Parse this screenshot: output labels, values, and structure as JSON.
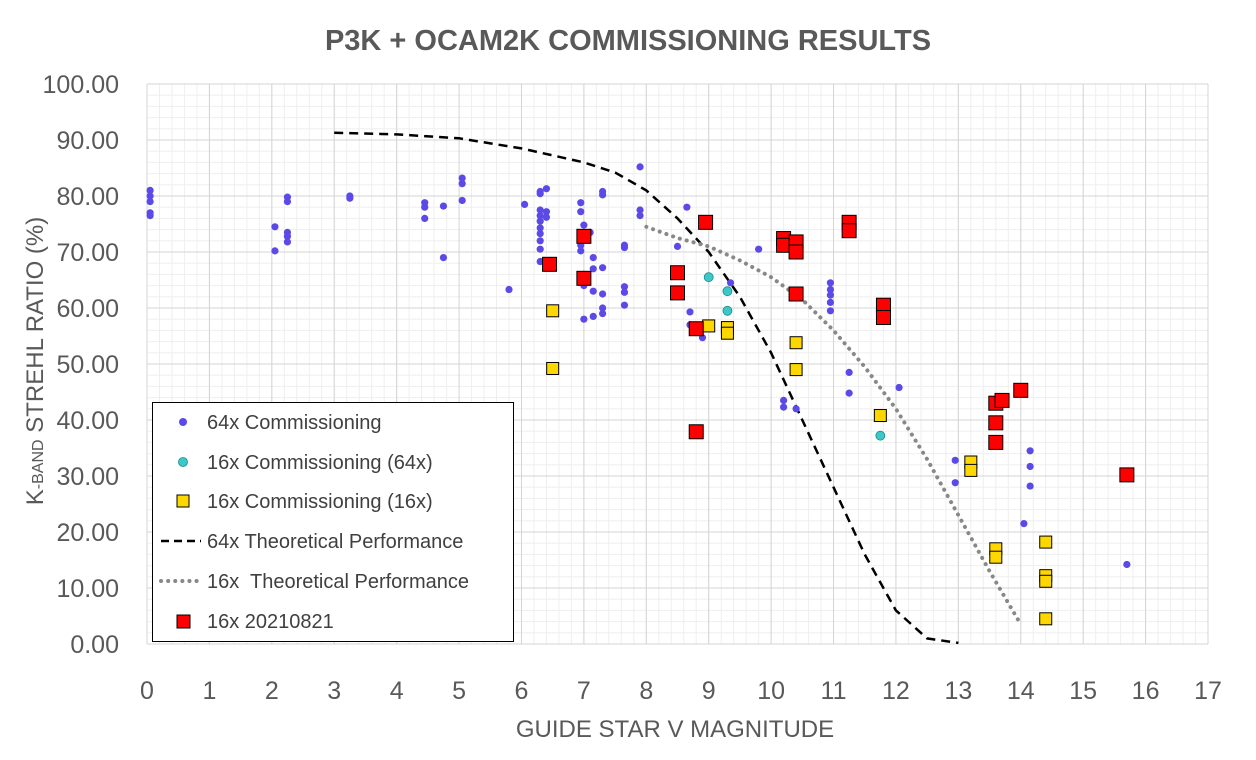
{
  "chart_data": {
    "type": "scatter",
    "title": "P3K + OCAM2K COMMISSIONING RESULTS",
    "xlabel": "GUIDE STAR V MAGNITUDE",
    "ylabel_prefix": "K",
    "ylabel_small": "-BAND",
    "ylabel_rest": " STREHL RATIO (%)",
    "xlim": [
      0,
      17
    ],
    "ylim": [
      0,
      100
    ],
    "x_ticks": [
      "0",
      "1",
      "2",
      "3",
      "4",
      "5",
      "6",
      "7",
      "8",
      "9",
      "10",
      "11",
      "12",
      "13",
      "14",
      "15",
      "16",
      "17"
    ],
    "y_ticks": [
      "0.00",
      "10.00",
      "20.00",
      "30.00",
      "40.00",
      "50.00",
      "60.00",
      "70.00",
      "80.00",
      "90.00",
      "100.00"
    ],
    "grid": true,
    "legend_position": "bottom-left",
    "series": [
      {
        "name": "64x Commissioning",
        "marker": "circle",
        "color": "#5b4ae8",
        "points": [
          [
            0.05,
            81.0
          ],
          [
            0.05,
            80.0
          ],
          [
            0.05,
            79.0
          ],
          [
            0.05,
            77.0
          ],
          [
            0.05,
            76.5
          ],
          [
            2.05,
            74.5
          ],
          [
            2.05,
            70.2
          ],
          [
            2.25,
            79.8
          ],
          [
            2.25,
            79.0
          ],
          [
            2.25,
            73.5
          ],
          [
            2.25,
            72.8
          ],
          [
            2.25,
            71.8
          ],
          [
            3.25,
            80.0
          ],
          [
            3.25,
            79.6
          ],
          [
            4.45,
            78.8
          ],
          [
            4.45,
            78.0
          ],
          [
            4.45,
            76.0
          ],
          [
            4.75,
            78.2
          ],
          [
            4.75,
            69.0
          ],
          [
            5.05,
            83.2
          ],
          [
            5.05,
            82.2
          ],
          [
            5.05,
            79.2
          ],
          [
            5.8,
            63.3
          ],
          [
            6.05,
            78.5
          ],
          [
            6.3,
            80.8
          ],
          [
            6.3,
            80.4
          ],
          [
            6.3,
            77.5
          ],
          [
            6.3,
            76.5
          ],
          [
            6.3,
            75.5
          ],
          [
            6.3,
            74.3
          ],
          [
            6.3,
            73.3
          ],
          [
            6.3,
            72.0
          ],
          [
            6.3,
            70.5
          ],
          [
            6.3,
            68.3
          ],
          [
            6.4,
            81.3
          ],
          [
            6.4,
            77.2
          ],
          [
            6.4,
            76.2
          ],
          [
            6.95,
            78.8
          ],
          [
            6.95,
            77.2
          ],
          [
            6.95,
            73.3
          ],
          [
            6.95,
            72.3
          ],
          [
            6.95,
            71.2
          ],
          [
            6.95,
            70.2
          ],
          [
            7.0,
            74.8
          ],
          [
            7.0,
            66.0
          ],
          [
            7.0,
            64.0
          ],
          [
            7.0,
            58.0
          ],
          [
            7.1,
            73.5
          ],
          [
            7.15,
            69.0
          ],
          [
            7.15,
            67.0
          ],
          [
            7.15,
            63.0
          ],
          [
            7.15,
            58.5
          ],
          [
            7.3,
            80.8
          ],
          [
            7.3,
            80.2
          ],
          [
            7.3,
            67.2
          ],
          [
            7.3,
            62.5
          ],
          [
            7.3,
            60.0
          ],
          [
            7.3,
            59.0
          ],
          [
            7.65,
            71.2
          ],
          [
            7.65,
            70.8
          ],
          [
            7.65,
            63.8
          ],
          [
            7.65,
            62.8
          ],
          [
            7.65,
            60.5
          ],
          [
            7.9,
            85.2
          ],
          [
            7.9,
            77.5
          ],
          [
            7.9,
            76.5
          ],
          [
            8.5,
            71.0
          ],
          [
            8.65,
            78.0
          ],
          [
            8.7,
            59.3
          ],
          [
            8.7,
            57.0
          ],
          [
            8.9,
            54.7
          ],
          [
            9.35,
            64.5
          ],
          [
            9.8,
            70.5
          ],
          [
            10.95,
            64.5
          ],
          [
            10.95,
            63.3
          ],
          [
            10.95,
            62.3
          ],
          [
            10.95,
            61.0
          ],
          [
            10.95,
            59.5
          ],
          [
            10.2,
            43.5
          ],
          [
            10.2,
            42.3
          ],
          [
            10.4,
            42.0
          ],
          [
            11.25,
            48.5
          ],
          [
            11.25,
            44.8
          ],
          [
            12.05,
            45.8
          ],
          [
            12.95,
            32.8
          ],
          [
            12.95,
            28.8
          ],
          [
            14.05,
            21.5
          ],
          [
            14.15,
            34.5
          ],
          [
            14.15,
            31.7
          ],
          [
            14.15,
            28.2
          ],
          [
            15.7,
            14.2
          ]
        ]
      },
      {
        "name": "16x Commissioning (64x)",
        "marker": "circle",
        "color": "#3cc8c8",
        "points": [
          [
            9.0,
            65.5
          ],
          [
            9.3,
            63.0
          ],
          [
            9.3,
            59.5
          ],
          [
            11.75,
            37.2
          ]
        ]
      },
      {
        "name": "16x Commissioning (16x)",
        "marker": "square",
        "color": "#ffd700",
        "points": [
          [
            6.5,
            59.5
          ],
          [
            6.5,
            49.2
          ],
          [
            9.0,
            56.8
          ],
          [
            9.3,
            56.5
          ],
          [
            9.3,
            55.5
          ],
          [
            10.4,
            53.8
          ],
          [
            10.4,
            49.0
          ],
          [
            11.75,
            40.8
          ],
          [
            13.2,
            32.5
          ],
          [
            13.2,
            31.0
          ],
          [
            13.6,
            17.0
          ],
          [
            13.6,
            15.5
          ],
          [
            14.4,
            18.2
          ],
          [
            14.4,
            12.2
          ],
          [
            14.4,
            11.2
          ],
          [
            14.4,
            4.5
          ]
        ]
      },
      {
        "name": "64x Theoretical Performance",
        "line": "dashed",
        "color": "#000000",
        "points": [
          [
            3.0,
            91.3
          ],
          [
            4.0,
            91.0
          ],
          [
            5.0,
            90.3
          ],
          [
            6.0,
            88.5
          ],
          [
            7.0,
            86.0
          ],
          [
            7.5,
            84.2
          ],
          [
            8.0,
            81.0
          ],
          [
            8.5,
            76.0
          ],
          [
            9.0,
            70.0
          ],
          [
            9.5,
            62.0
          ],
          [
            10.0,
            52.0
          ],
          [
            10.5,
            40.0
          ],
          [
            11.0,
            28.0
          ],
          [
            11.5,
            16.0
          ],
          [
            12.0,
            6.0
          ],
          [
            12.5,
            1.0
          ],
          [
            13.0,
            0.2
          ]
        ]
      },
      {
        "name": "16x  Theoretical Performance",
        "line": "dotted",
        "color": "#888888",
        "points": [
          [
            8.0,
            74.5
          ],
          [
            8.5,
            72.5
          ],
          [
            9.0,
            71.0
          ],
          [
            9.5,
            68.5
          ],
          [
            10.0,
            65.5
          ],
          [
            10.5,
            61.5
          ],
          [
            11.0,
            56.0
          ],
          [
            11.5,
            49.5
          ],
          [
            12.0,
            42.0
          ],
          [
            12.5,
            33.0
          ],
          [
            13.0,
            23.0
          ],
          [
            13.5,
            13.0
          ],
          [
            14.0,
            3.5
          ]
        ]
      },
      {
        "name": "16x 20210821",
        "marker": "square",
        "color": "#ff0000",
        "points": [
          [
            6.45,
            67.8
          ],
          [
            7.0,
            72.8
          ],
          [
            7.0,
            65.3
          ],
          [
            8.5,
            66.3
          ],
          [
            8.5,
            62.7
          ],
          [
            8.8,
            56.3
          ],
          [
            8.8,
            37.9
          ],
          [
            8.95,
            75.3
          ],
          [
            10.2,
            72.4
          ],
          [
            10.2,
            71.2
          ],
          [
            10.4,
            71.8
          ],
          [
            10.4,
            70.0
          ],
          [
            10.4,
            62.5
          ],
          [
            11.25,
            75.3
          ],
          [
            11.25,
            73.8
          ],
          [
            11.8,
            60.5
          ],
          [
            11.8,
            58.3
          ],
          [
            13.6,
            43.0
          ],
          [
            13.6,
            39.5
          ],
          [
            13.6,
            36.0
          ],
          [
            13.7,
            43.5
          ],
          [
            14.0,
            45.3
          ],
          [
            15.7,
            30.2
          ]
        ]
      }
    ]
  }
}
